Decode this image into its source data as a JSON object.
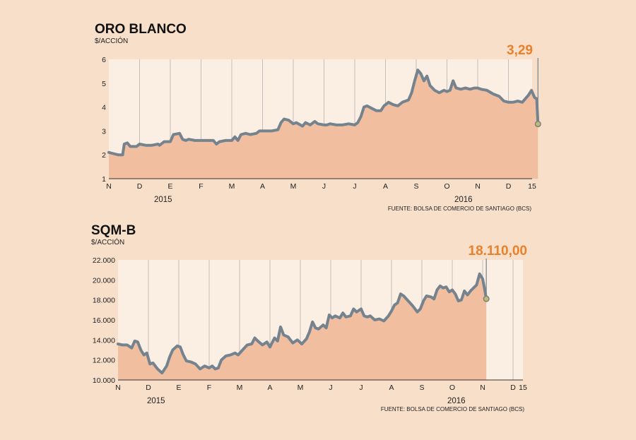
{
  "colors": {
    "background": "#f7dfca",
    "plot_background": "#fbeee2",
    "area_fill": "#f1bf9f",
    "line": "#75838f",
    "grid": "#a0a0a0",
    "callout": "#e8812c",
    "marker_fill": "#c8b66a"
  },
  "chart_data": [
    {
      "type": "area",
      "title": "ORO BLANCO",
      "unit_label": "$/ACCIÓN",
      "ylim": [
        1,
        6
      ],
      "yticks": [
        "1",
        "2",
        "3",
        "4",
        "5",
        "6"
      ],
      "month_labels": [
        "N",
        "D",
        "E",
        "F",
        "M",
        "A",
        "M",
        "J",
        "J",
        "A",
        "S",
        "O",
        "N",
        "D",
        "15"
      ],
      "year_labels": [
        "2015",
        "2016"
      ],
      "last_value_label": "3,29",
      "last_value": 3.29,
      "grid": "vertical month lines",
      "source": "FUENTE: BOLSA DE COMERCIO DE SANTIAGO (BCS)",
      "series": [
        {
          "values": [
            [
              0,
              2.1
            ],
            [
              0.15,
              2.05
            ],
            [
              0.3,
              2.0
            ],
            [
              0.45,
              2.0
            ],
            [
              0.5,
              2.45
            ],
            [
              0.6,
              2.5
            ],
            [
              0.7,
              2.35
            ],
            [
              0.9,
              2.35
            ],
            [
              1.0,
              2.45
            ],
            [
              1.2,
              2.4
            ],
            [
              1.4,
              2.4
            ],
            [
              1.6,
              2.45
            ],
            [
              1.65,
              2.4
            ],
            [
              1.8,
              2.55
            ],
            [
              2.0,
              2.55
            ],
            [
              2.1,
              2.85
            ],
            [
              2.3,
              2.9
            ],
            [
              2.4,
              2.65
            ],
            [
              2.5,
              2.6
            ],
            [
              2.6,
              2.65
            ],
            [
              2.8,
              2.6
            ],
            [
              3.0,
              2.6
            ],
            [
              3.2,
              2.6
            ],
            [
              3.4,
              2.6
            ],
            [
              3.5,
              2.45
            ],
            [
              3.6,
              2.55
            ],
            [
              3.8,
              2.6
            ],
            [
              4.0,
              2.6
            ],
            [
              4.1,
              2.75
            ],
            [
              4.2,
              2.6
            ],
            [
              4.3,
              2.85
            ],
            [
              4.45,
              2.9
            ],
            [
              4.6,
              2.85
            ],
            [
              4.8,
              2.9
            ],
            [
              4.9,
              3.0
            ],
            [
              5.1,
              3.0
            ],
            [
              5.3,
              3.0
            ],
            [
              5.5,
              3.05
            ],
            [
              5.6,
              3.35
            ],
            [
              5.7,
              3.5
            ],
            [
              5.85,
              3.45
            ],
            [
              6.0,
              3.3
            ],
            [
              6.1,
              3.35
            ],
            [
              6.3,
              3.2
            ],
            [
              6.4,
              3.35
            ],
            [
              6.55,
              3.25
            ],
            [
              6.7,
              3.4
            ],
            [
              6.8,
              3.3
            ],
            [
              7.0,
              3.25
            ],
            [
              7.1,
              3.25
            ],
            [
              7.2,
              3.3
            ],
            [
              7.4,
              3.25
            ],
            [
              7.6,
              3.25
            ],
            [
              7.8,
              3.3
            ],
            [
              8.0,
              3.25
            ],
            [
              8.1,
              3.35
            ],
            [
              8.2,
              3.6
            ],
            [
              8.3,
              4.0
            ],
            [
              8.4,
              4.05
            ],
            [
              8.55,
              3.95
            ],
            [
              8.7,
              3.85
            ],
            [
              8.85,
              3.85
            ],
            [
              8.95,
              4.05
            ],
            [
              9.1,
              4.2
            ],
            [
              9.25,
              4.1
            ],
            [
              9.4,
              4.05
            ],
            [
              9.55,
              4.2
            ],
            [
              9.65,
              4.25
            ],
            [
              9.75,
              4.3
            ],
            [
              9.85,
              4.6
            ],
            [
              9.95,
              5.1
            ],
            [
              10.05,
              5.55
            ],
            [
              10.15,
              5.4
            ],
            [
              10.25,
              5.1
            ],
            [
              10.35,
              5.3
            ],
            [
              10.45,
              4.9
            ],
            [
              10.6,
              4.7
            ],
            [
              10.75,
              4.6
            ],
            [
              10.9,
              4.7
            ],
            [
              11.0,
              4.65
            ],
            [
              11.1,
              4.7
            ],
            [
              11.2,
              5.1
            ],
            [
              11.3,
              4.8
            ],
            [
              11.45,
              4.75
            ],
            [
              11.6,
              4.8
            ],
            [
              11.75,
              4.75
            ],
            [
              11.9,
              4.8
            ],
            [
              12.0,
              4.8
            ],
            [
              12.1,
              4.75
            ],
            [
              12.3,
              4.7
            ],
            [
              12.5,
              4.55
            ],
            [
              12.7,
              4.45
            ],
            [
              12.85,
              4.25
            ],
            [
              13.0,
              4.2
            ],
            [
              13.15,
              4.2
            ],
            [
              13.3,
              4.25
            ],
            [
              13.45,
              4.2
            ],
            [
              13.55,
              4.35
            ],
            [
              13.65,
              4.5
            ],
            [
              13.75,
              4.7
            ],
            [
              13.85,
              4.4
            ],
            [
              13.92,
              4.35
            ],
            [
              13.96,
              3.29
            ]
          ]
        }
      ]
    },
    {
      "type": "area",
      "title": "SQM-B",
      "unit_label": "$/ACCIÓN",
      "ylim": [
        10000,
        22000
      ],
      "yticks": [
        "10.000",
        "12.000",
        "14.000",
        "16.000",
        "18.000",
        "20.000",
        "22.000"
      ],
      "month_labels": [
        "N",
        "D",
        "E",
        "F",
        "M",
        "A",
        "M",
        "J",
        "J",
        "A",
        "S",
        "O",
        "N",
        "D",
        "15"
      ],
      "year_labels": [
        "2015",
        "2016"
      ],
      "last_value_label": "18.110,00",
      "last_value": 18110,
      "grid": "vertical month lines",
      "source": "FUENTE: BOLSA DE COMERCIO DE SANTIAGO (BCS)",
      "series": [
        {
          "values": [
            [
              0,
              13600
            ],
            [
              0.15,
              13500
            ],
            [
              0.3,
              13500
            ],
            [
              0.45,
              13200
            ],
            [
              0.55,
              13900
            ],
            [
              0.65,
              13800
            ],
            [
              0.75,
              13000
            ],
            [
              0.85,
              12500
            ],
            [
              0.95,
              12700
            ],
            [
              1.05,
              11600
            ],
            [
              1.15,
              11700
            ],
            [
              1.3,
              11100
            ],
            [
              1.45,
              10700
            ],
            [
              1.6,
              11400
            ],
            [
              1.7,
              12300
            ],
            [
              1.8,
              13000
            ],
            [
              1.95,
              13400
            ],
            [
              2.05,
              13300
            ],
            [
              2.15,
              12500
            ],
            [
              2.25,
              11900
            ],
            [
              2.4,
              11800
            ],
            [
              2.55,
              11600
            ],
            [
              2.7,
              11100
            ],
            [
              2.85,
              11400
            ],
            [
              3.0,
              11200
            ],
            [
              3.1,
              11400
            ],
            [
              3.2,
              11100
            ],
            [
              3.3,
              11200
            ],
            [
              3.4,
              12000
            ],
            [
              3.55,
              12400
            ],
            [
              3.7,
              12500
            ],
            [
              3.85,
              12700
            ],
            [
              3.95,
              12500
            ],
            [
              4.1,
              13000
            ],
            [
              4.25,
              13500
            ],
            [
              4.4,
              13600
            ],
            [
              4.5,
              14200
            ],
            [
              4.6,
              13900
            ],
            [
              4.75,
              13500
            ],
            [
              4.9,
              13800
            ],
            [
              5.0,
              13300
            ],
            [
              5.15,
              14200
            ],
            [
              5.25,
              13900
            ],
            [
              5.35,
              15300
            ],
            [
              5.45,
              14500
            ],
            [
              5.6,
              14300
            ],
            [
              5.75,
              13700
            ],
            [
              5.9,
              14000
            ],
            [
              6.05,
              13600
            ],
            [
              6.2,
              14100
            ],
            [
              6.3,
              14800
            ],
            [
              6.4,
              15800
            ],
            [
              6.5,
              15200
            ],
            [
              6.6,
              15100
            ],
            [
              6.75,
              15500
            ],
            [
              6.85,
              15200
            ],
            [
              6.95,
              16500
            ],
            [
              7.05,
              16200
            ],
            [
              7.15,
              16400
            ],
            [
              7.3,
              16200
            ],
            [
              7.4,
              16700
            ],
            [
              7.5,
              16300
            ],
            [
              7.65,
              16400
            ],
            [
              7.75,
              17100
            ],
            [
              7.85,
              16800
            ],
            [
              8.0,
              17100
            ],
            [
              8.1,
              16400
            ],
            [
              8.2,
              16300
            ],
            [
              8.3,
              16400
            ],
            [
              8.45,
              16000
            ],
            [
              8.6,
              16100
            ],
            [
              8.75,
              15900
            ],
            [
              8.9,
              16400
            ],
            [
              9.0,
              16900
            ],
            [
              9.1,
              17500
            ],
            [
              9.2,
              17700
            ],
            [
              9.3,
              18600
            ],
            [
              9.4,
              18400
            ],
            [
              9.55,
              17900
            ],
            [
              9.7,
              17400
            ],
            [
              9.85,
              16800
            ],
            [
              9.95,
              17100
            ],
            [
              10.05,
              17900
            ],
            [
              10.15,
              18400
            ],
            [
              10.3,
              18300
            ],
            [
              10.4,
              18100
            ],
            [
              10.5,
              19000
            ],
            [
              10.6,
              19400
            ],
            [
              10.7,
              19200
            ],
            [
              10.8,
              19300
            ],
            [
              10.9,
              18800
            ],
            [
              11.0,
              19000
            ],
            [
              11.1,
              18600
            ],
            [
              11.2,
              17900
            ],
            [
              11.3,
              18000
            ],
            [
              11.4,
              18900
            ],
            [
              11.5,
              18500
            ],
            [
              11.6,
              18900
            ],
            [
              11.7,
              19200
            ],
            [
              11.8,
              19500
            ],
            [
              11.9,
              20600
            ],
            [
              12.0,
              20100
            ],
            [
              12.07,
              19000
            ],
            [
              12.12,
              18110
            ]
          ]
        }
      ]
    }
  ]
}
